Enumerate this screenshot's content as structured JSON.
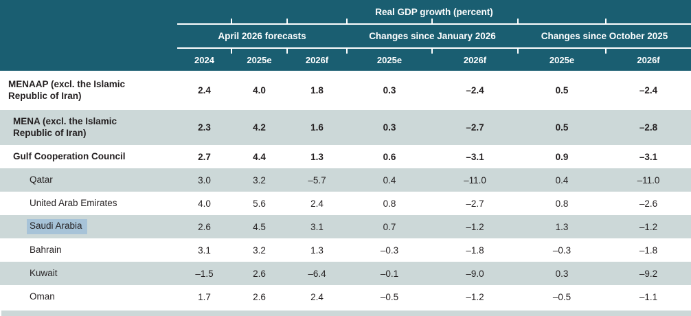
{
  "title": "Real GDP growth (percent)",
  "groups": [
    {
      "label": "April 2026 forecasts",
      "cols": [
        "2024",
        "2025e",
        "2026f"
      ]
    },
    {
      "label": "Changes since January 2026",
      "cols": [
        "2025e",
        "2026f"
      ]
    },
    {
      "label": "Changes since October 2025",
      "cols": [
        "2025e",
        "2026f"
      ]
    }
  ],
  "rows": [
    {
      "label": "MENAAP (excl. the Islamic Republic of Iran)",
      "indent": 0,
      "bold": true,
      "shaded": false,
      "highlighted": false,
      "values": [
        "2.4",
        "4.0",
        "1.8",
        "0.3",
        "–2.4",
        "0.5",
        "–2.4"
      ]
    },
    {
      "label": "MENA (excl. the Islamic Republic of Iran)",
      "indent": 1,
      "bold": true,
      "shaded": true,
      "highlighted": false,
      "values": [
        "2.3",
        "4.2",
        "1.6",
        "0.3",
        "–2.7",
        "0.5",
        "–2.8"
      ]
    },
    {
      "label": "Gulf Cooperation Council",
      "indent": 1,
      "bold": true,
      "shaded": false,
      "highlighted": false,
      "values": [
        "2.7",
        "4.4",
        "1.3",
        "0.6",
        "–3.1",
        "0.9",
        "–3.1"
      ]
    },
    {
      "label": "Qatar",
      "indent": 2,
      "bold": false,
      "shaded": true,
      "highlighted": false,
      "values": [
        "3.0",
        "3.2",
        "–5.7",
        "0.4",
        "–11.0",
        "0.4",
        "–11.0"
      ]
    },
    {
      "label": "United Arab Emirates",
      "indent": 2,
      "bold": false,
      "shaded": false,
      "highlighted": false,
      "values": [
        "4.0",
        "5.6",
        "2.4",
        "0.8",
        "–2.7",
        "0.8",
        "–2.6"
      ]
    },
    {
      "label": "Saudi Arabia",
      "indent": 2,
      "bold": false,
      "shaded": true,
      "highlighted": true,
      "values": [
        "2.6",
        "4.5",
        "3.1",
        "0.7",
        "–1.2",
        "1.3",
        "–1.2"
      ]
    },
    {
      "label": "Bahrain",
      "indent": 2,
      "bold": false,
      "shaded": false,
      "highlighted": false,
      "values": [
        "3.1",
        "3.2",
        "1.3",
        "–0.3",
        "–1.8",
        "–0.3",
        "–1.8"
      ]
    },
    {
      "label": "Kuwait",
      "indent": 2,
      "bold": false,
      "shaded": true,
      "highlighted": false,
      "values": [
        "–1.5",
        "2.6",
        "–6.4",
        "–0.1",
        "–9.0",
        "0.3",
        "–9.2"
      ]
    },
    {
      "label": "Oman",
      "indent": 2,
      "bold": false,
      "shaded": false,
      "highlighted": false,
      "values": [
        "1.7",
        "2.6",
        "2.4",
        "–0.5",
        "–1.2",
        "–0.5",
        "–1.1"
      ]
    }
  ],
  "colors": {
    "header_bg": "#1a5e71",
    "shaded_row": "#ccd8d8",
    "text_selection": "#a7c3d8",
    "text": "#231f20"
  },
  "chart_data": {
    "type": "table",
    "title": "Real GDP growth (percent)",
    "columns": [
      "2024 (April 2026 forecasts)",
      "2025e (April 2026 forecasts)",
      "2026f (April 2026 forecasts)",
      "2025e (Changes since January 2026)",
      "2026f (Changes since January 2026)",
      "2025e (Changes since October 2025)",
      "2026f (Changes since October 2025)"
    ],
    "rows": [
      {
        "label": "MENAAP (excl. the Islamic Republic of Iran)",
        "values": [
          2.4,
          4.0,
          1.8,
          0.3,
          -2.4,
          0.5,
          -2.4
        ]
      },
      {
        "label": "MENA (excl. the Islamic Republic of Iran)",
        "values": [
          2.3,
          4.2,
          1.6,
          0.3,
          -2.7,
          0.5,
          -2.8
        ]
      },
      {
        "label": "Gulf Cooperation Council",
        "values": [
          2.7,
          4.4,
          1.3,
          0.6,
          -3.1,
          0.9,
          -3.1
        ]
      },
      {
        "label": "Qatar",
        "values": [
          3.0,
          3.2,
          -5.7,
          0.4,
          -11.0,
          0.4,
          -11.0
        ]
      },
      {
        "label": "United Arab Emirates",
        "values": [
          4.0,
          5.6,
          2.4,
          0.8,
          -2.7,
          0.8,
          -2.6
        ]
      },
      {
        "label": "Saudi Arabia",
        "values": [
          2.6,
          4.5,
          3.1,
          0.7,
          -1.2,
          1.3,
          -1.2
        ]
      },
      {
        "label": "Bahrain",
        "values": [
          3.1,
          3.2,
          1.3,
          -0.3,
          -1.8,
          -0.3,
          -1.8
        ]
      },
      {
        "label": "Kuwait",
        "values": [
          -1.5,
          2.6,
          -6.4,
          -0.1,
          -9.0,
          0.3,
          -9.2
        ]
      },
      {
        "label": "Oman",
        "values": [
          1.7,
          2.6,
          2.4,
          -0.5,
          -1.2,
          -0.5,
          -1.1
        ]
      }
    ]
  }
}
